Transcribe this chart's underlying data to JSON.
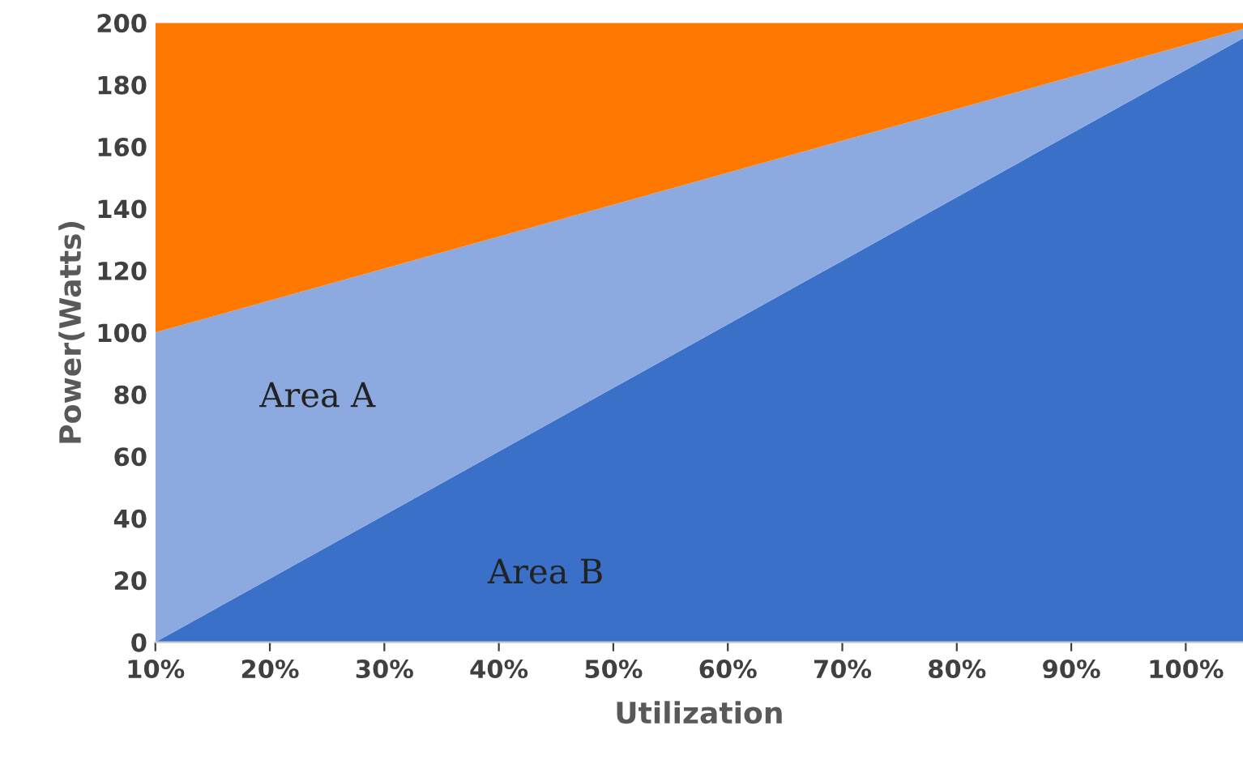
{
  "chart_data": {
    "type": "area",
    "stacked": true,
    "xlabel": "Utilization",
    "ylabel": "Power(Watts)",
    "x": [
      10,
      105
    ],
    "series": [
      {
        "color": "#3a70c8",
        "values": [
          0,
          195
        ]
      },
      {
        "color": "#8caae0",
        "values": [
          100,
          3
        ]
      },
      {
        "color": "#ff7800",
        "values": [
          100,
          2
        ]
      }
    ],
    "xlim": [
      10,
      105
    ],
    "ylim": [
      0,
      200
    ],
    "xticks": [
      {
        "value": 10,
        "label": "10%"
      },
      {
        "value": 20,
        "label": "20%"
      },
      {
        "value": 30,
        "label": "30%"
      },
      {
        "value": 40,
        "label": "40%"
      },
      {
        "value": 50,
        "label": "50%"
      },
      {
        "value": 60,
        "label": "60%"
      },
      {
        "value": 70,
        "label": "70%"
      },
      {
        "value": 80,
        "label": "80%"
      },
      {
        "value": 90,
        "label": "90%"
      },
      {
        "value": 100,
        "label": "100%"
      }
    ],
    "yticks": [
      0,
      20,
      40,
      60,
      80,
      100,
      120,
      140,
      160,
      180,
      200
    ],
    "grid": false,
    "legend": false,
    "annotations": [
      "Area A",
      "Area B"
    ]
  }
}
